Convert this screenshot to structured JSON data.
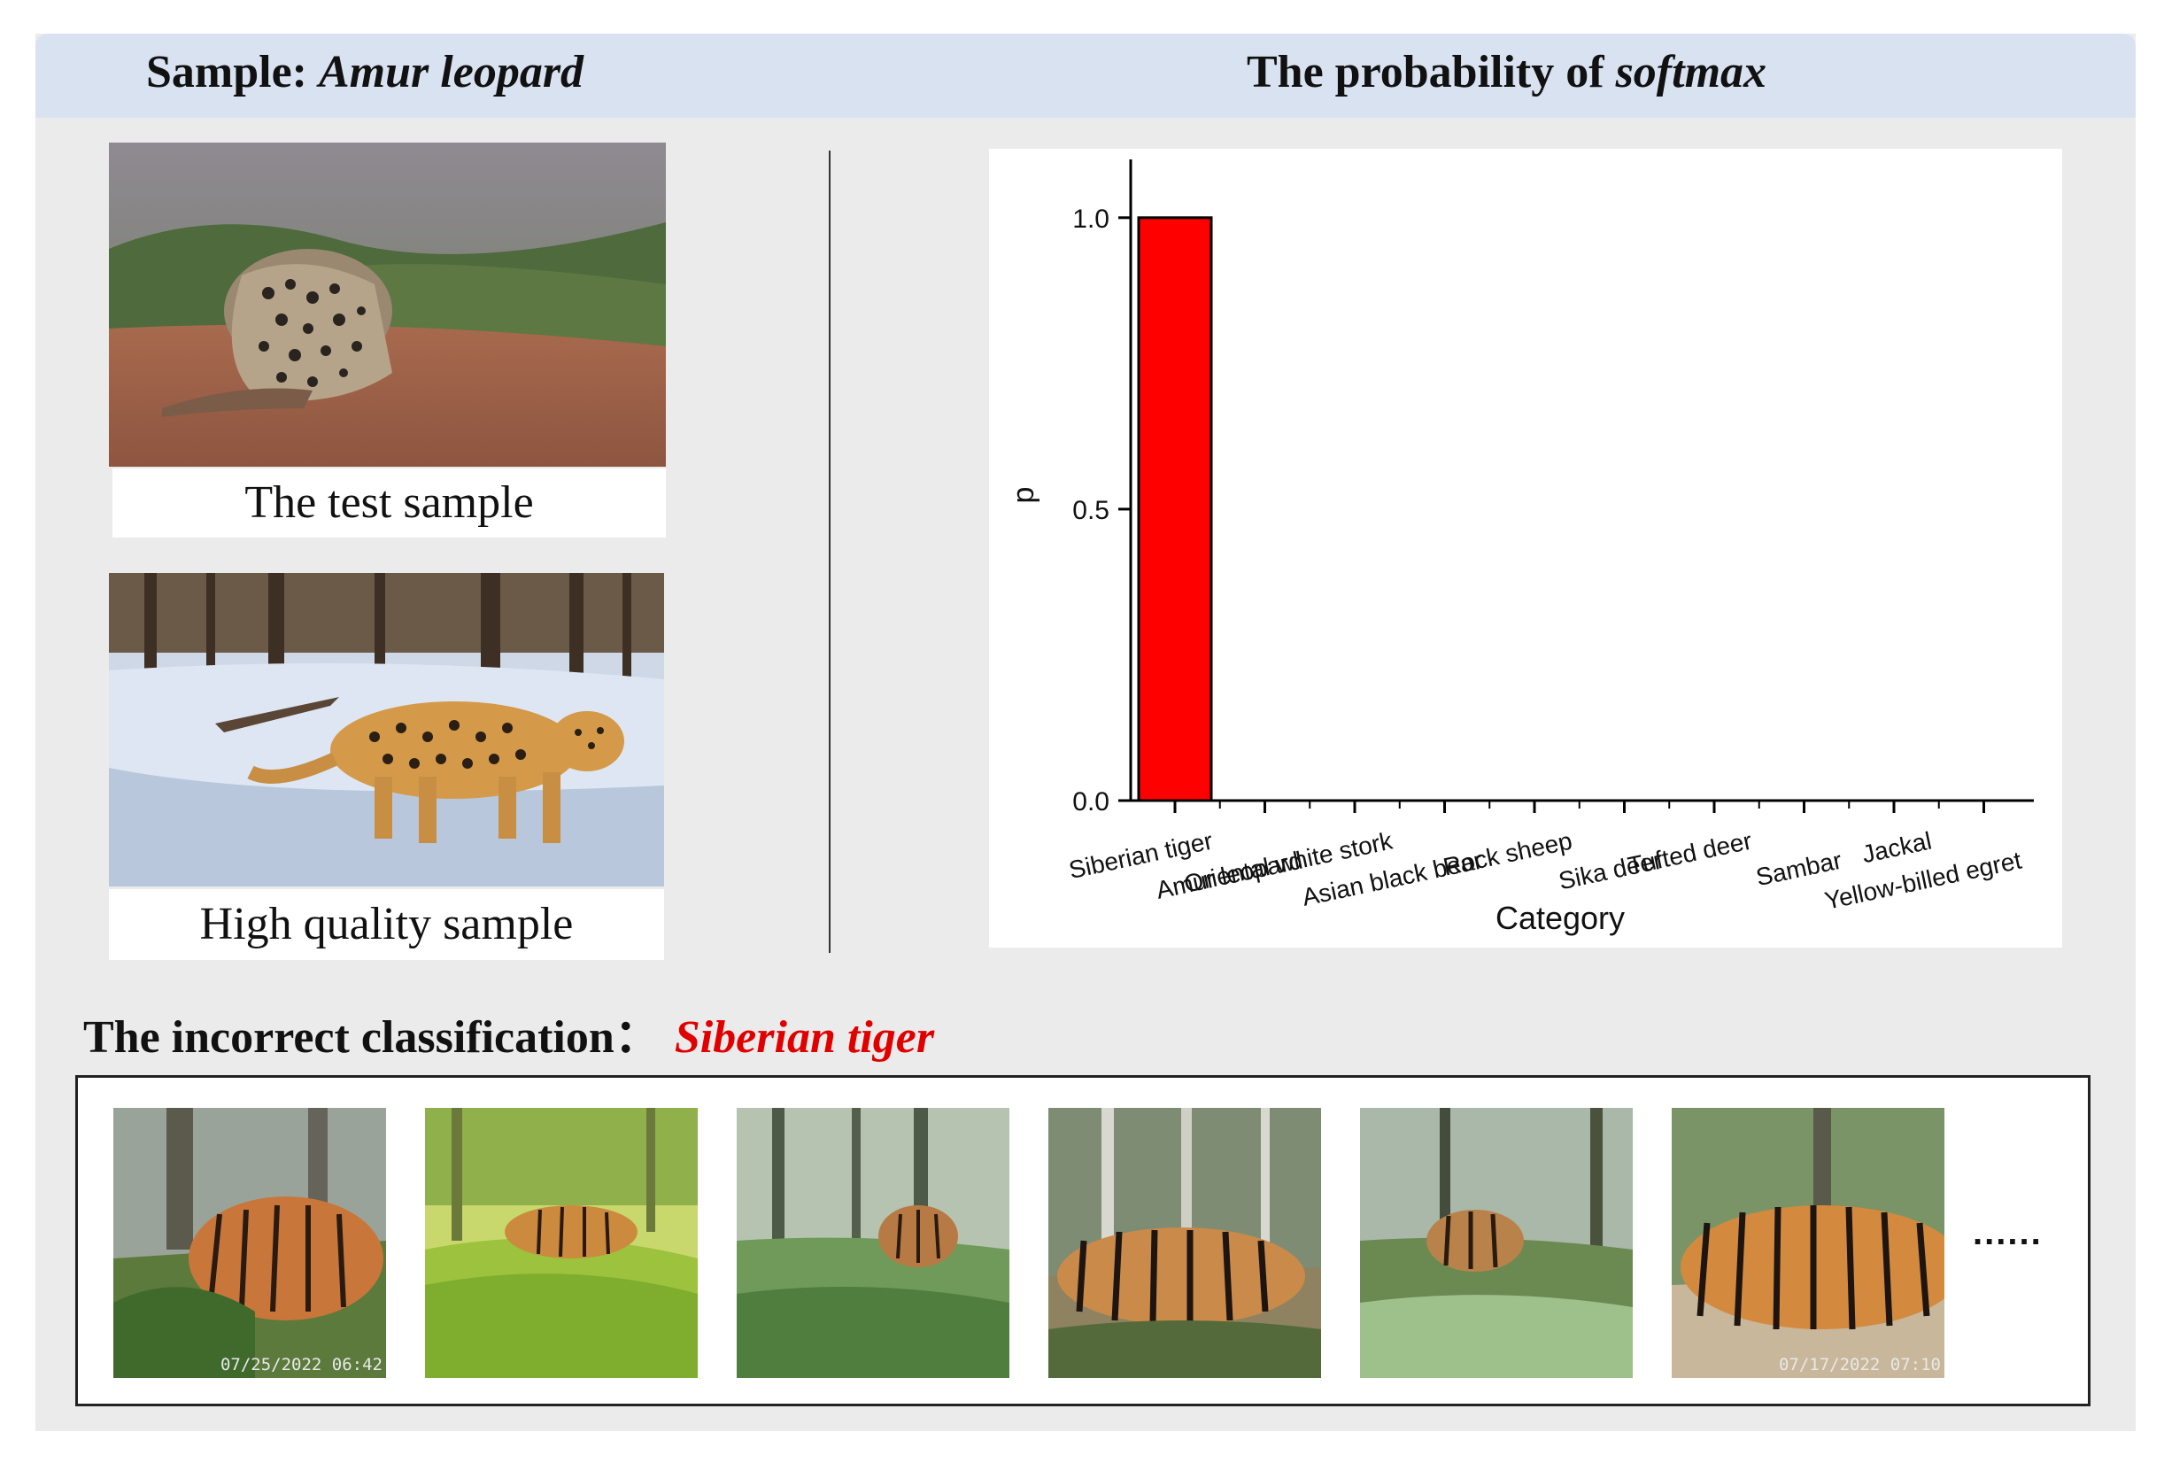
{
  "header": {
    "left_prefix": "Sample: ",
    "left_species": "Amur leopard",
    "right_prefix": "The probability of ",
    "right_emph": "softmax"
  },
  "samples": {
    "test_caption": "The test sample",
    "hq_caption": "High quality sample"
  },
  "chart_data": {
    "type": "bar",
    "categories": [
      "Siberian tiger",
      "Amur leopard",
      "Oriental white stork",
      "Asian black bear",
      "Rock sheep",
      "Sika deer",
      "Tufted deer",
      "Sambar",
      "Jackal",
      "Yellow-billed egret"
    ],
    "values": [
      1.0,
      0,
      0,
      0,
      0,
      0,
      0,
      0,
      0,
      0
    ],
    "xlabel": "Category",
    "ylabel": "p",
    "ylim": [
      0,
      1.1
    ],
    "yticks": [
      "0.0",
      "0.5",
      "1.0"
    ],
    "bar_color": "#ff0000",
    "grid": false
  },
  "incorrect": {
    "label": "The incorrect classification：",
    "value": "Siberian tiger",
    "value_color": "#e00000"
  },
  "gallery": {
    "stamps": [
      "07/25/2022 06:42",
      "",
      "",
      "",
      "",
      "07/17/2022 07:10"
    ],
    "ellipsis": "......"
  }
}
